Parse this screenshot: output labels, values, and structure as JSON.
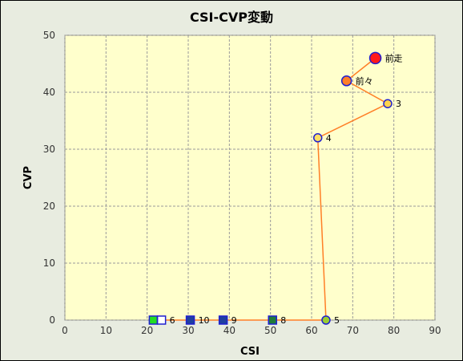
{
  "chart_data": {
    "type": "line",
    "title": "CSI-CVP変動",
    "xlabel": "CSI",
    "ylabel": "CVP",
    "xlim": [
      0,
      90
    ],
    "ylim": [
      0,
      50
    ],
    "xticks": [
      0,
      10,
      20,
      30,
      40,
      50,
      60,
      70,
      80,
      90
    ],
    "yticks": [
      0,
      10,
      20,
      30,
      40,
      50
    ],
    "grid": true,
    "colors": {
      "plot_bg": "#ffffcc",
      "line": "#ff7f27",
      "marker_edge": "#1f1fd0",
      "grid": "#9a9a9a"
    },
    "points": [
      {
        "label": "前走",
        "x": 75.5,
        "y": 46,
        "fill": "#ff1a1a",
        "shape": "circle",
        "size": "large"
      },
      {
        "label": "前々",
        "x": 68.5,
        "y": 42,
        "fill": "#ff7f27",
        "shape": "circle",
        "size": "medium"
      },
      {
        "label": "3",
        "x": 78.5,
        "y": 38,
        "fill": "#ffd24d",
        "shape": "circle",
        "size": "small"
      },
      {
        "label": "4",
        "x": 61.5,
        "y": 32,
        "fill": "#ffe066",
        "shape": "circle",
        "size": "small"
      },
      {
        "label": "5",
        "x": 63.5,
        "y": 0,
        "fill": "#99cc33",
        "shape": "circle",
        "size": "small"
      },
      {
        "label": "8",
        "x": 50.5,
        "y": 0,
        "fill": "#1f7a3a",
        "shape": "square",
        "size": "small"
      },
      {
        "label": "9",
        "x": 38.5,
        "y": 0,
        "fill": "#1f3fa0",
        "shape": "square",
        "size": "small"
      },
      {
        "label": "10",
        "x": 30.5,
        "y": 0,
        "fill": "#1f3fa0",
        "shape": "square",
        "size": "small"
      },
      {
        "label": "6",
        "x": 23.5,
        "y": 0,
        "fill": "#ffffff",
        "shape": "square",
        "size": "small"
      },
      {
        "label": "",
        "x": 21.5,
        "y": 0,
        "fill": "#22dd22",
        "shape": "square",
        "size": "small"
      }
    ]
  }
}
